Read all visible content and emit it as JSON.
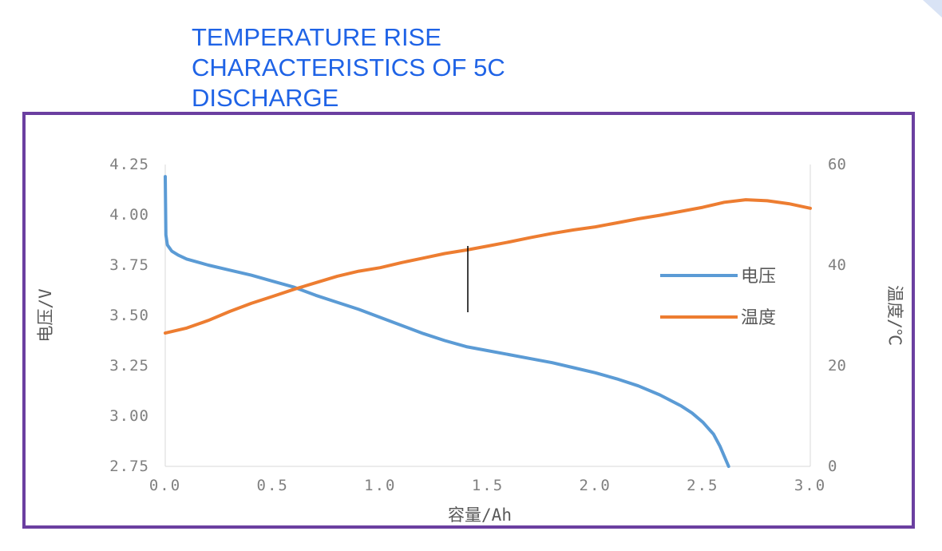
{
  "page": {
    "title": "TEMPERATURE RISE CHARACTERISTICS OF 5C DISCHARGE"
  },
  "colors": {
    "frame": "#6b3fa0",
    "title": "#1f63e6",
    "voltage": "#5b9bd5",
    "temperature": "#ed7d31",
    "axis_text": "#808080"
  },
  "chart_data": {
    "type": "line",
    "title": "",
    "xlabel": "容量/Ah",
    "ylabel": "电压/V",
    "y2label": "温度/℃",
    "xlim": [
      0,
      3.0
    ],
    "ylim": [
      2.75,
      4.25
    ],
    "y2lim": [
      0,
      60
    ],
    "x_ticks": [
      "0.0",
      "0.5",
      "1.0",
      "1.5",
      "2.0",
      "2.5",
      "3.0"
    ],
    "y_ticks": [
      "2.75",
      "3.00",
      "3.25",
      "3.50",
      "3.75",
      "4.00",
      "4.25"
    ],
    "y2_ticks": [
      "0",
      "20",
      "40",
      "60"
    ],
    "grid": false,
    "legend_position": "right",
    "series": [
      {
        "name": "电压",
        "axis": "left",
        "x": [
          0.0,
          0.003,
          0.01,
          0.03,
          0.06,
          0.1,
          0.15,
          0.2,
          0.3,
          0.4,
          0.5,
          0.6,
          0.7,
          0.8,
          0.9,
          1.0,
          1.1,
          1.2,
          1.3,
          1.4,
          1.5,
          1.6,
          1.7,
          1.8,
          1.9,
          2.0,
          2.1,
          2.2,
          2.3,
          2.4,
          2.45,
          2.5,
          2.55,
          2.58,
          2.6,
          2.62
        ],
        "values": [
          4.19,
          3.9,
          3.85,
          3.82,
          3.8,
          3.78,
          3.765,
          3.75,
          3.725,
          3.7,
          3.67,
          3.64,
          3.6,
          3.565,
          3.53,
          3.49,
          3.45,
          3.41,
          3.375,
          3.345,
          3.325,
          3.305,
          3.285,
          3.265,
          3.24,
          3.215,
          3.185,
          3.15,
          3.105,
          3.05,
          3.015,
          2.97,
          2.91,
          2.85,
          2.8,
          2.75
        ]
      },
      {
        "name": "温度",
        "axis": "right",
        "x": [
          0.0,
          0.1,
          0.2,
          0.3,
          0.4,
          0.5,
          0.6,
          0.7,
          0.8,
          0.9,
          1.0,
          1.1,
          1.2,
          1.3,
          1.4,
          1.5,
          1.6,
          1.7,
          1.8,
          1.9,
          2.0,
          2.1,
          2.2,
          2.3,
          2.4,
          2.5,
          2.6,
          2.7,
          2.8,
          2.9,
          3.0
        ],
        "values": [
          26.5,
          27.5,
          29.0,
          30.8,
          32.4,
          33.8,
          35.2,
          36.5,
          37.8,
          38.8,
          39.5,
          40.5,
          41.4,
          42.3,
          43.0,
          43.8,
          44.6,
          45.5,
          46.3,
          47.0,
          47.6,
          48.4,
          49.2,
          49.9,
          50.7,
          51.5,
          52.5,
          53.0,
          52.8,
          52.2,
          51.3
        ]
      }
    ]
  }
}
